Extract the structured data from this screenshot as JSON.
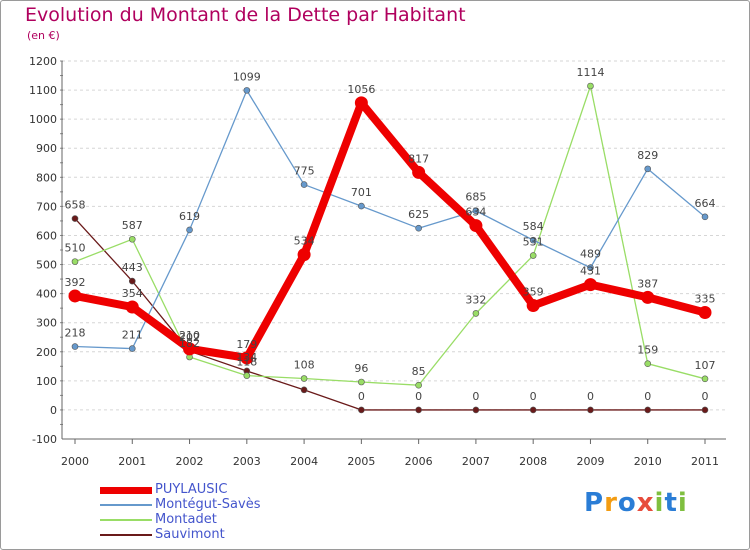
{
  "chart_data": {
    "type": "line",
    "title": "Evolution du Montant de la Dette par Habitant",
    "subtitle": "(en €)",
    "categories": [
      "2000",
      "2001",
      "2002",
      "2003",
      "2004",
      "2005",
      "2006",
      "2007",
      "2008",
      "2009",
      "2010",
      "2011"
    ],
    "ylim": [
      -100,
      1200
    ],
    "yticks": [
      -100,
      0,
      100,
      200,
      300,
      400,
      500,
      600,
      700,
      800,
      900,
      1000,
      1100,
      1200
    ],
    "grid": "horizontal dashed",
    "legend_position": "bottom-left",
    "series": [
      {
        "name": "Sauvimont",
        "color": "#6a1a1a",
        "values": [
          658,
          443,
          202,
          134,
          69,
          0,
          0,
          0,
          0,
          0,
          0,
          0
        ],
        "labels": [
          "658",
          "443",
          "202",
          "134",
          "",
          "0",
          "0",
          "0",
          "0",
          "0",
          "0",
          "0"
        ]
      },
      {
        "name": "Montadet",
        "color": "#99dd66",
        "values": [
          510,
          587,
          182,
          118,
          108,
          96,
          85,
          332,
          531,
          1114,
          159,
          107
        ],
        "labels": [
          "510",
          "587",
          "182",
          "118",
          "108",
          "96",
          "85",
          "332",
          "531",
          "1114",
          "159",
          "107"
        ]
      },
      {
        "name": "Montégut-Savès",
        "color": "#6699cc",
        "values": [
          218,
          211,
          619,
          1099,
          775,
          701,
          625,
          685,
          584,
          489,
          829,
          664
        ],
        "labels": [
          "218",
          "211",
          "619",
          "1099",
          "775",
          "701",
          "625",
          "685",
          "584",
          "489",
          "829",
          "664"
        ]
      },
      {
        "name": "PUYLAUSIC",
        "color": "#ee0000",
        "values": [
          392,
          354,
          210,
          179,
          534,
          1056,
          817,
          634,
          359,
          431,
          387,
          335
        ],
        "labels": [
          "392",
          "354",
          "210",
          "179",
          "534",
          "1056",
          "817",
          "634",
          "359",
          "431",
          "387",
          "335"
        ]
      }
    ],
    "legend_order": [
      "PUYLAUSIC",
      "Montégut-Savès",
      "Montadet",
      "Sauvimont"
    ]
  },
  "legend": [
    {
      "name": "PUYLAUSIC",
      "color": "#ee0000"
    },
    {
      "name": "Montégut-Savès",
      "color": "#6699cc"
    },
    {
      "name": "Montadet",
      "color": "#99dd66"
    },
    {
      "name": "Sauvimont",
      "color": "#6a1a1a"
    }
  ],
  "logo": {
    "letters": [
      "P",
      "r",
      "o",
      "x",
      "i",
      "t",
      "i"
    ],
    "colors": [
      "#2a7dd6",
      "#f39c12",
      "#2a7dd6",
      "#e74c3c",
      "#7fbf3f",
      "#2a7dd6",
      "#7fbf3f"
    ]
  }
}
